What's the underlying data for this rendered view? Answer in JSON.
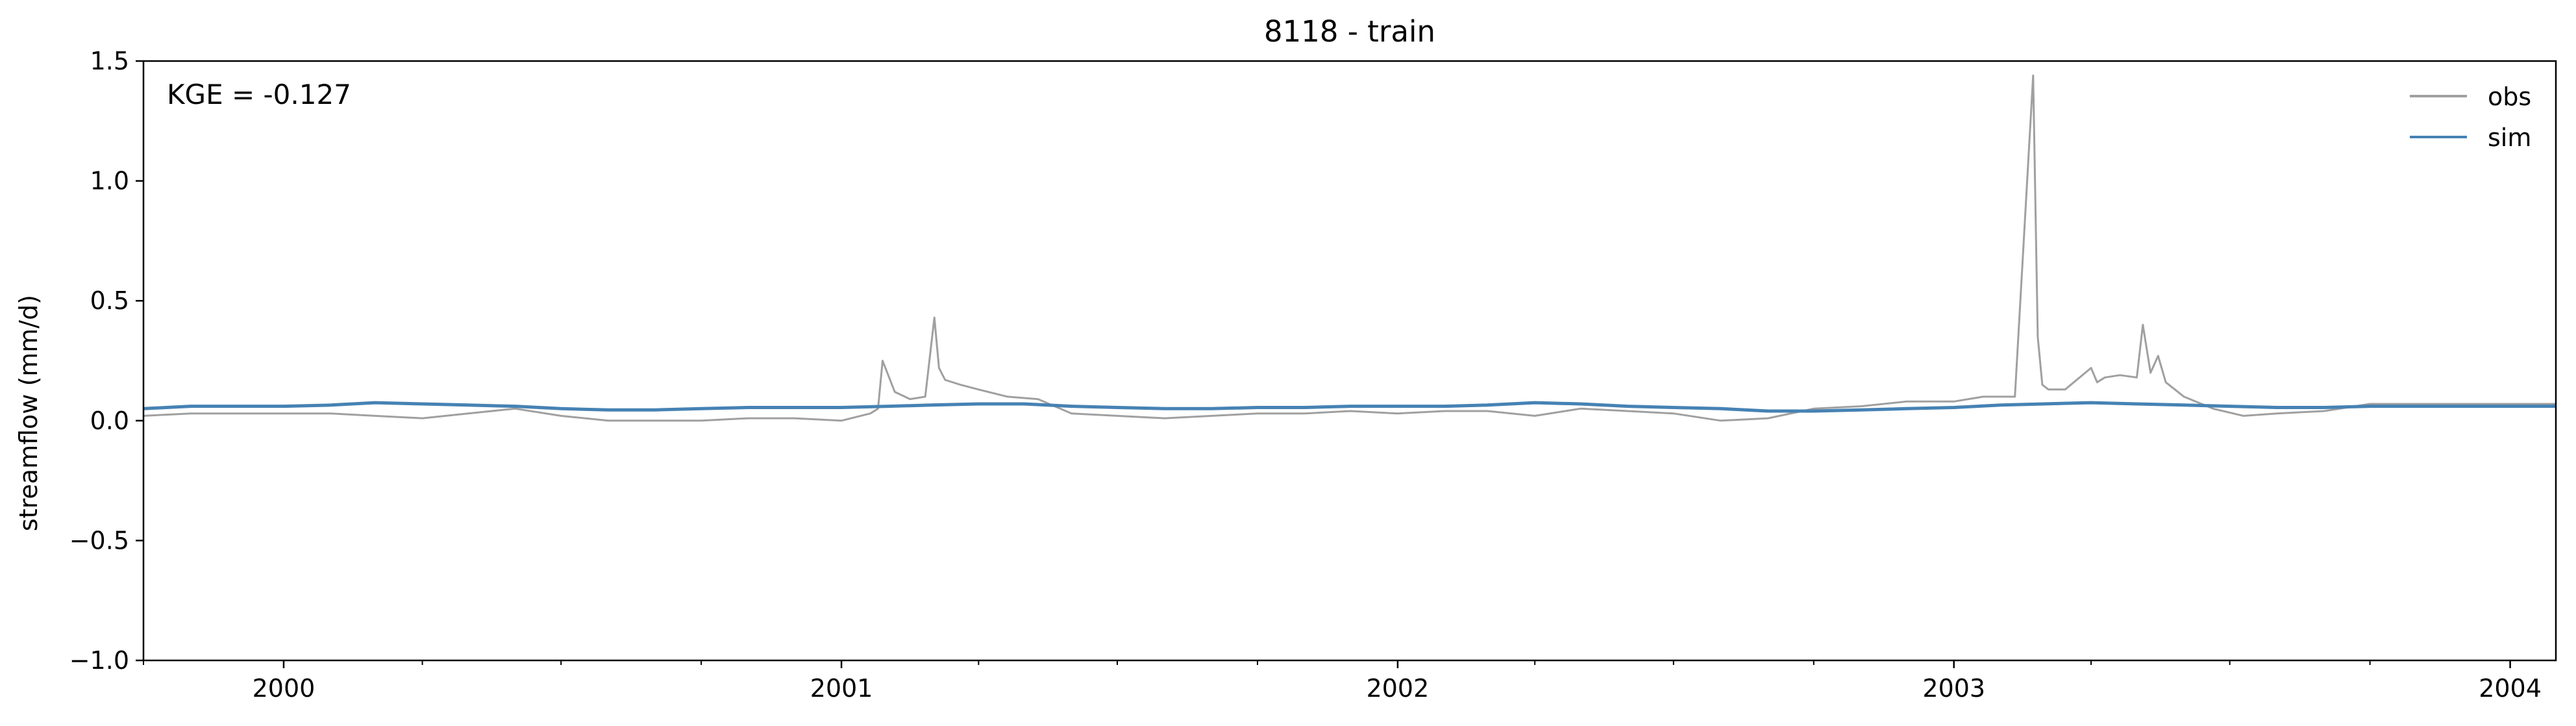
{
  "chart_data": {
    "type": "line",
    "title": "8118 - train",
    "xlabel": "",
    "ylabel": "streamflow (mm/d)",
    "xlim": [
      "1999-10-01",
      "2004-01-31"
    ],
    "ylim": [
      -1.0,
      1.5
    ],
    "x_ticks": [
      "2000",
      "2001",
      "2002",
      "2003",
      "2004"
    ],
    "x_tick_dates": [
      "2000-01-01",
      "2001-01-01",
      "2002-01-01",
      "2003-01-01",
      "2004-01-01"
    ],
    "y_ticks": [
      "−1.0",
      "−0.5",
      "0.0",
      "0.5",
      "1.0",
      "1.5"
    ],
    "y_tick_values": [
      -1.0,
      -0.5,
      0.0,
      0.5,
      1.0,
      1.5
    ],
    "annotation": "KGE = -0.127",
    "legend": {
      "placement": "top-right",
      "entries": [
        "obs",
        "sim"
      ]
    },
    "grid": false,
    "series": [
      {
        "name": "obs",
        "color": "#a0a0a0",
        "x": [
          "1999-10-01",
          "1999-11-01",
          "1999-12-01",
          "2000-01-01",
          "2000-02-01",
          "2000-03-01",
          "2000-04-01",
          "2000-05-01",
          "2000-06-01",
          "2000-07-01",
          "2000-08-01",
          "2000-09-01",
          "2000-10-01",
          "2000-11-01",
          "2000-12-01",
          "2001-01-01",
          "2001-01-20",
          "2001-01-25",
          "2001-01-28",
          "2001-02-05",
          "2001-02-15",
          "2001-02-25",
          "2001-03-03",
          "2001-03-06",
          "2001-03-10",
          "2001-03-20",
          "2001-04-01",
          "2001-04-20",
          "2001-05-10",
          "2001-06-01",
          "2001-07-01",
          "2001-08-01",
          "2001-09-01",
          "2001-10-01",
          "2001-11-01",
          "2001-12-01",
          "2002-01-01",
          "2002-02-01",
          "2002-03-01",
          "2002-04-01",
          "2002-05-01",
          "2002-06-01",
          "2002-07-01",
          "2002-08-01",
          "2002-09-01",
          "2002-10-01",
          "2002-11-01",
          "2002-12-01",
          "2003-01-01",
          "2003-01-20",
          "2003-02-10",
          "2003-02-22",
          "2003-02-25",
          "2003-02-28",
          "2003-03-04",
          "2003-03-15",
          "2003-04-01",
          "2003-04-05",
          "2003-04-10",
          "2003-04-20",
          "2003-05-01",
          "2003-05-05",
          "2003-05-10",
          "2003-05-15",
          "2003-05-20",
          "2003-06-01",
          "2003-06-20",
          "2003-07-10",
          "2003-08-01",
          "2003-09-01",
          "2003-10-01",
          "2003-11-01",
          "2003-12-01",
          "2004-01-31"
        ],
        "y": [
          0.02,
          0.03,
          0.03,
          0.03,
          0.03,
          0.02,
          0.01,
          0.03,
          0.05,
          0.02,
          0.0,
          0.0,
          0.0,
          0.01,
          0.01,
          0.0,
          0.03,
          0.05,
          0.25,
          0.12,
          0.09,
          0.1,
          0.43,
          0.22,
          0.17,
          0.15,
          0.13,
          0.1,
          0.09,
          0.03,
          0.02,
          0.01,
          0.02,
          0.03,
          0.03,
          0.04,
          0.03,
          0.04,
          0.04,
          0.02,
          0.05,
          0.04,
          0.03,
          0.0,
          0.01,
          0.05,
          0.06,
          0.08,
          0.08,
          0.1,
          0.1,
          1.44,
          0.35,
          0.15,
          0.13,
          0.13,
          0.22,
          0.16,
          0.18,
          0.19,
          0.18,
          0.4,
          0.2,
          0.27,
          0.16,
          0.1,
          0.05,
          0.02,
          0.03,
          0.04,
          0.07,
          0.07,
          0.07,
          0.07
        ]
      },
      {
        "name": "sim",
        "color": "#4682b4",
        "x": [
          "1999-10-01",
          "1999-11-01",
          "1999-12-01",
          "2000-01-01",
          "2000-02-01",
          "2000-03-01",
          "2000-04-01",
          "2000-05-01",
          "2000-06-01",
          "2000-07-01",
          "2000-08-01",
          "2000-09-01",
          "2000-10-01",
          "2000-11-01",
          "2000-12-01",
          "2001-01-01",
          "2001-02-01",
          "2001-03-01",
          "2001-04-01",
          "2001-05-01",
          "2001-06-01",
          "2001-07-01",
          "2001-08-01",
          "2001-09-01",
          "2001-10-01",
          "2001-11-01",
          "2001-12-01",
          "2002-01-01",
          "2002-02-01",
          "2002-03-01",
          "2002-04-01",
          "2002-05-01",
          "2002-06-01",
          "2002-07-01",
          "2002-08-01",
          "2002-09-01",
          "2002-10-01",
          "2002-11-01",
          "2002-12-01",
          "2003-01-01",
          "2003-02-01",
          "2003-03-01",
          "2003-04-01",
          "2003-05-01",
          "2003-06-01",
          "2003-07-01",
          "2003-08-01",
          "2003-09-01",
          "2003-10-01",
          "2003-11-01",
          "2003-12-01",
          "2004-01-31"
        ],
        "y": [
          0.05,
          0.06,
          0.06,
          0.06,
          0.065,
          0.075,
          0.07,
          0.065,
          0.06,
          0.05,
          0.045,
          0.045,
          0.05,
          0.055,
          0.055,
          0.055,
          0.06,
          0.065,
          0.07,
          0.07,
          0.06,
          0.055,
          0.05,
          0.05,
          0.055,
          0.055,
          0.06,
          0.06,
          0.06,
          0.065,
          0.075,
          0.07,
          0.06,
          0.055,
          0.05,
          0.04,
          0.04,
          0.045,
          0.05,
          0.055,
          0.065,
          0.07,
          0.075,
          0.07,
          0.065,
          0.06,
          0.055,
          0.055,
          0.06,
          0.06,
          0.06,
          0.06
        ]
      }
    ]
  }
}
